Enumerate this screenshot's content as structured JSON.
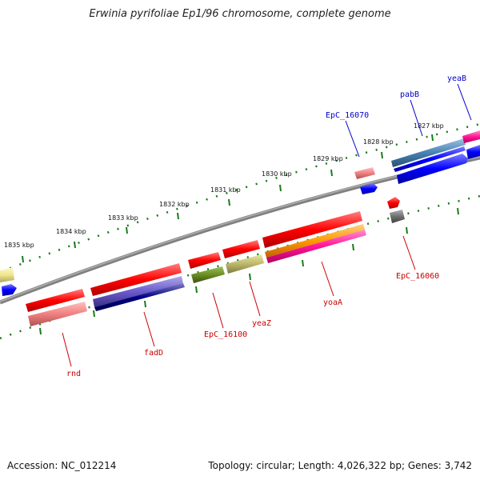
{
  "title": "Erwinia pyrifoliae Ep1/96 chromosome, complete genome",
  "footer": {
    "accession": "Accession: NC_012214",
    "summary": "Topology: circular; Length: 4,026,322 bp; Genes: 3,742"
  },
  "ticks": [
    "1835 kbp",
    "1834 kbp",
    "1833 kbp",
    "1832 kbp",
    "1831 kbp",
    "1830 kbp",
    "1829 kbp",
    "1828 kbp",
    "1827 kbp"
  ],
  "gene_labels": {
    "outer": [
      "yeaB",
      "pabB",
      "EpC_16070"
    ],
    "inner": [
      "EpC_16060",
      "yoaA",
      "yeaZ",
      "EpC_16100",
      "fadD",
      "rnd"
    ]
  },
  "colors": {
    "backbone": "#808080",
    "tick": "#1a7a1a",
    "outer_label": "#0000cc",
    "inner_label": "#cc0000"
  }
}
